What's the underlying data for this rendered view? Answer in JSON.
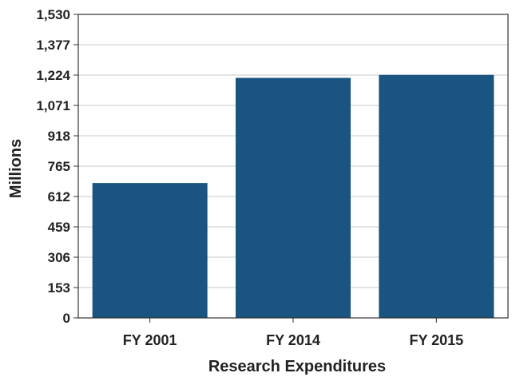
{
  "chart_data": {
    "type": "bar",
    "categories": [
      "FY 2001",
      "FY 2014",
      "FY 2015"
    ],
    "series": [
      {
        "values": [
          680,
          1210,
          1225
        ]
      }
    ],
    "yticks": [
      "0",
      "153",
      "306",
      "459",
      "612",
      "765",
      "918",
      "1,071",
      "1,224",
      "1,377",
      "1,530"
    ],
    "ylim": [
      0,
      1530
    ],
    "xlabel": "Research Expenditures",
    "ylabel": "Millions",
    "title": "",
    "grid": true,
    "legend": "none",
    "colors": {
      "bar": "#1a5480",
      "grid": "#c8c8c8",
      "axis": "#333333",
      "text": "#222222"
    }
  }
}
